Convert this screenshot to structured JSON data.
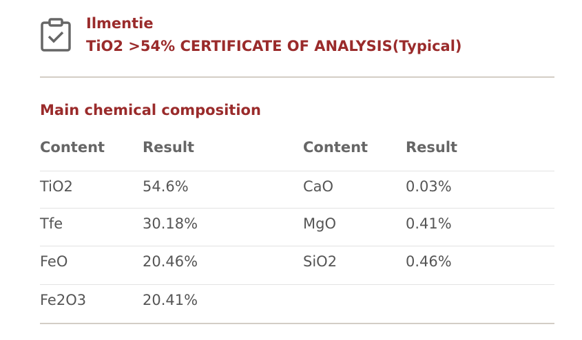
{
  "header": {
    "title": "Ilmentie",
    "subtitle": "TiO2 >54% CERTIFICATE OF ANALYSIS(Typical)"
  },
  "section_title": "Main chemical composition",
  "table": {
    "columns": [
      "Content",
      "Result",
      "Content",
      "Result"
    ],
    "rows": [
      [
        "TiO2",
        "54.6%",
        "CaO",
        "0.03%"
      ],
      [
        "Tfe",
        "30.18%",
        "MgO",
        "0.41%"
      ],
      [
        "FeO",
        "20.46%",
        "SiO2",
        "0.46%"
      ],
      [
        "Fe2O3",
        "20.41%"
      ]
    ]
  }
}
